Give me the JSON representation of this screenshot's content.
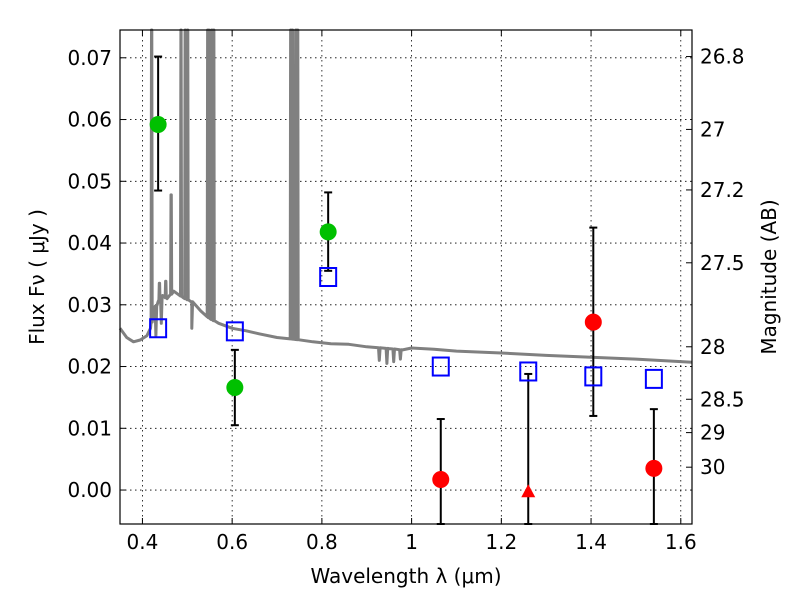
{
  "chart_data": {
    "type": "scatter",
    "xlabel": "Wavelength  λ (μm)",
    "ylabel": "Flux  Fν  ( μJy )",
    "ylabel2": "Magnitude (AB)",
    "xlim": [
      0.35,
      1.625
    ],
    "ylim": [
      -0.0055,
      0.0745
    ],
    "grid": true,
    "x_ticks": [
      {
        "value": 0.4,
        "label": "0.4"
      },
      {
        "value": 0.6,
        "label": "0.6"
      },
      {
        "value": 0.8,
        "label": "0.8"
      },
      {
        "value": 1.0,
        "label": "1"
      },
      {
        "value": 1.2,
        "label": "1.2"
      },
      {
        "value": 1.4,
        "label": "1.4"
      },
      {
        "value": 1.6,
        "label": "1.6"
      }
    ],
    "y_ticks": [
      {
        "value": 0.0,
        "label": "0.00"
      },
      {
        "value": 0.01,
        "label": "0.01"
      },
      {
        "value": 0.02,
        "label": "0.02"
      },
      {
        "value": 0.03,
        "label": "0.03"
      },
      {
        "value": 0.04,
        "label": "0.04"
      },
      {
        "value": 0.05,
        "label": "0.05"
      },
      {
        "value": 0.06,
        "label": "0.06"
      },
      {
        "value": 0.07,
        "label": "0.07"
      }
    ],
    "magnitude_ticks": [
      {
        "label": "26.8",
        "flux": 0.0702
      },
      {
        "label": "27",
        "flux": 0.0584
      },
      {
        "label": "27.2",
        "flux": 0.0486
      },
      {
        "label": "27.5",
        "flux": 0.0368
      },
      {
        "label": "28",
        "flux": 0.0232
      },
      {
        "label": "28.5",
        "flux": 0.0147
      },
      {
        "label": "29",
        "flux": 0.0093
      },
      {
        "label": "30",
        "flux": 0.0037
      }
    ],
    "series": [
      {
        "marker": "circle",
        "color": "#00c000",
        "points": [
          {
            "x": 0.435,
            "y": 0.0592,
            "err_low": 0.0485,
            "err_high": 0.0702
          },
          {
            "x": 0.606,
            "y": 0.0166,
            "err_low": 0.0105,
            "err_high": 0.0227
          },
          {
            "x": 0.814,
            "y": 0.0418,
            "err_low": 0.0355,
            "err_high": 0.0482
          }
        ]
      },
      {
        "marker": "circle",
        "color": "#ff0000",
        "points": [
          {
            "x": 1.065,
            "y": 0.0017,
            "err_low": -0.0055,
            "err_high": 0.0115
          },
          {
            "x": 1.405,
            "y": 0.0272,
            "err_low": 0.012,
            "err_high": 0.0425
          },
          {
            "x": 1.54,
            "y": 0.0035,
            "err_low": -0.0055,
            "err_high": 0.0131
          }
        ]
      },
      {
        "marker": "triangle",
        "color": "#ff0000",
        "points": [
          {
            "x": 1.26,
            "y": -0.0002,
            "err_low": -0.0055,
            "err_high": 0.0188
          }
        ]
      },
      {
        "marker": "open-square",
        "color": "#0000ff",
        "points": [
          {
            "x": 0.435,
            "y": 0.0262
          },
          {
            "x": 0.606,
            "y": 0.0257
          },
          {
            "x": 0.814,
            "y": 0.0345
          },
          {
            "x": 1.065,
            "y": 0.02
          },
          {
            "x": 1.26,
            "y": 0.0192
          },
          {
            "x": 1.405,
            "y": 0.0184
          },
          {
            "x": 1.54,
            "y": 0.018
          }
        ]
      }
    ],
    "model_spectrum": {
      "color": "#808080",
      "continuum": [
        [
          0.35,
          0.0262
        ],
        [
          0.365,
          0.0247
        ],
        [
          0.38,
          0.024
        ],
        [
          0.395,
          0.0243
        ],
        [
          0.41,
          0.025
        ],
        [
          0.418,
          0.0262
        ],
        [
          0.425,
          0.029
        ],
        [
          0.435,
          0.0305
        ],
        [
          0.445,
          0.0315
        ],
        [
          0.455,
          0.031
        ],
        [
          0.47,
          0.0322
        ],
        [
          0.49,
          0.0312
        ],
        [
          0.51,
          0.0305
        ],
        [
          0.53,
          0.029
        ],
        [
          0.55,
          0.0278
        ],
        [
          0.57,
          0.027
        ],
        [
          0.6,
          0.0262
        ],
        [
          0.63,
          0.0258
        ],
        [
          0.66,
          0.0253
        ],
        [
          0.7,
          0.0247
        ],
        [
          0.74,
          0.0244
        ],
        [
          0.78,
          0.024
        ],
        [
          0.82,
          0.0237
        ],
        [
          0.86,
          0.0236
        ],
        [
          0.9,
          0.0232
        ],
        [
          0.95,
          0.0229
        ],
        [
          0.98,
          0.0227
        ],
        [
          1.0,
          0.023
        ],
        [
          1.05,
          0.0228
        ],
        [
          1.1,
          0.0225
        ],
        [
          1.2,
          0.0222
        ],
        [
          1.3,
          0.0218
        ],
        [
          1.4,
          0.0215
        ],
        [
          1.5,
          0.0212
        ],
        [
          1.6,
          0.0208
        ],
        [
          1.625,
          0.0207
        ]
      ],
      "emission_lines": [
        {
          "x": 0.4205,
          "peak": 0.0745
        },
        {
          "x": 0.486,
          "peak": 0.0745
        },
        {
          "x": 0.4955,
          "peak": 0.0745
        },
        {
          "x": 0.5008,
          "peak": 0.0745
        },
        {
          "x": 0.5455,
          "peak": 0.0745
        },
        {
          "x": 0.548,
          "peak": 0.0745
        },
        {
          "x": 0.5545,
          "peak": 0.0745
        },
        {
          "x": 0.559,
          "peak": 0.0745
        },
        {
          "x": 0.7305,
          "peak": 0.0745
        },
        {
          "x": 0.7345,
          "peak": 0.0745
        },
        {
          "x": 0.742,
          "peak": 0.0745
        },
        {
          "x": 0.746,
          "peak": 0.0745
        },
        {
          "x": 0.464,
          "peak": 0.0478
        },
        {
          "x": 0.452,
          "peak": 0.0338
        },
        {
          "x": 0.438,
          "peak": 0.0335
        }
      ],
      "absorption_dips": [
        {
          "x": 0.43,
          "depth": 0.025
        },
        {
          "x": 0.442,
          "depth": 0.027
        },
        {
          "x": 0.51,
          "depth": 0.0262
        },
        {
          "x": 0.928,
          "depth": 0.021
        },
        {
          "x": 0.945,
          "depth": 0.0205
        },
        {
          "x": 0.96,
          "depth": 0.0208
        },
        {
          "x": 0.975,
          "depth": 0.0212
        }
      ]
    }
  }
}
